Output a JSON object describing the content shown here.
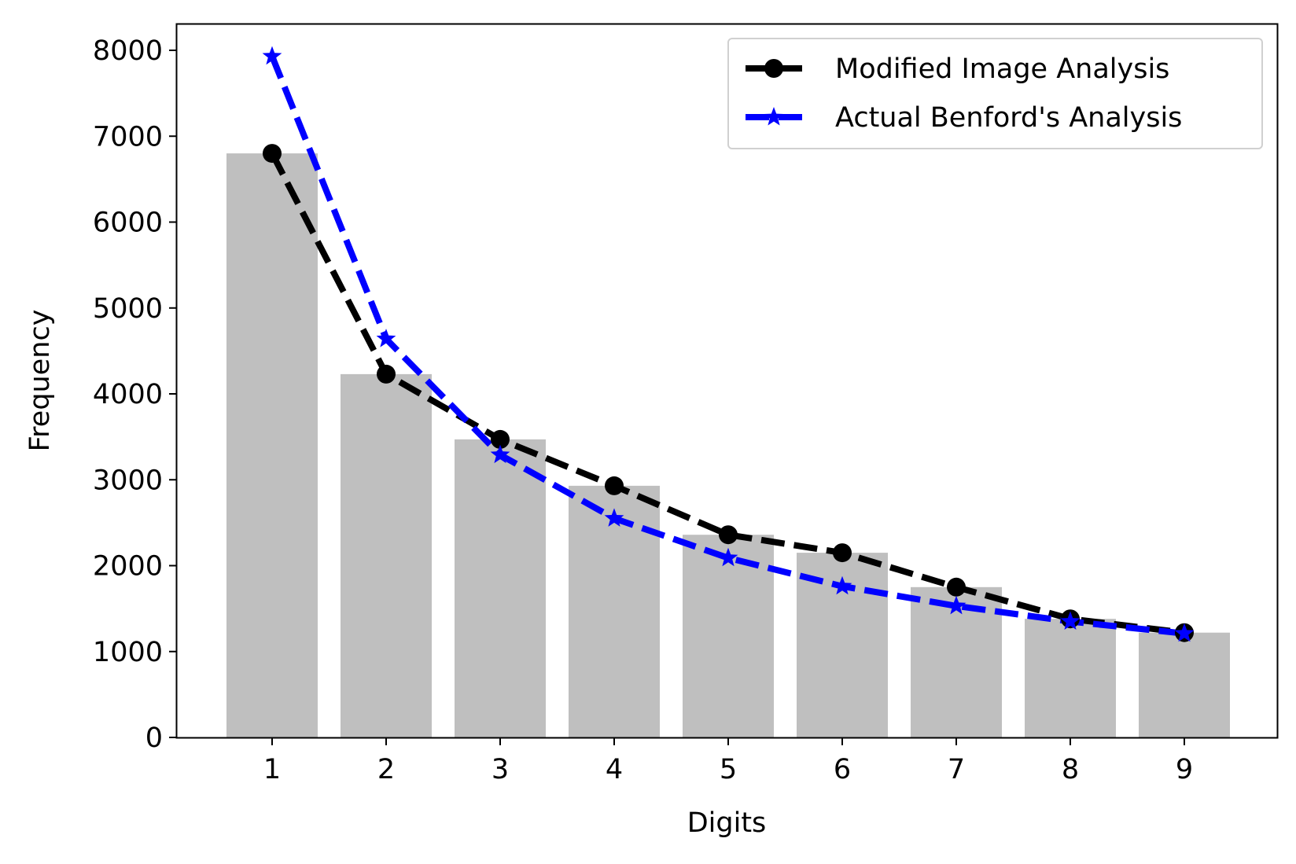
{
  "chart_data": {
    "type": "bar",
    "title": "",
    "xlabel": "Digits",
    "ylabel": "Frequency",
    "categories": [
      "1",
      "2",
      "3",
      "4",
      "5",
      "6",
      "7",
      "8",
      "9"
    ],
    "x": [
      1,
      2,
      3,
      4,
      5,
      6,
      7,
      8,
      9
    ],
    "ylim": [
      0,
      8300
    ],
    "yticks": [
      0,
      1000,
      2000,
      3000,
      4000,
      5000,
      6000,
      7000,
      8000
    ],
    "ytick_labels": [
      "0",
      "1000",
      "2000",
      "3000",
      "4000",
      "5000",
      "6000",
      "7000",
      "8000"
    ],
    "grid": false,
    "legend_position": "top-right",
    "bars": {
      "values": [
        6800,
        4230,
        3470,
        2930,
        2360,
        2150,
        1750,
        1380,
        1220
      ],
      "color": "#bfbfbf"
    },
    "series": [
      {
        "name": "Modified Image Analysis",
        "type": "line",
        "values": [
          6800,
          4230,
          3470,
          2930,
          2360,
          2150,
          1750,
          1380,
          1220
        ],
        "color": "#000000",
        "marker": "circle",
        "linestyle": "dashed"
      },
      {
        "name": "Actual Benford's Analysis",
        "type": "line",
        "values": [
          7930,
          4640,
          3290,
          2550,
          2090,
          1760,
          1530,
          1350,
          1210
        ],
        "color": "#0000ff",
        "marker": "star",
        "linestyle": "dashed"
      }
    ]
  }
}
